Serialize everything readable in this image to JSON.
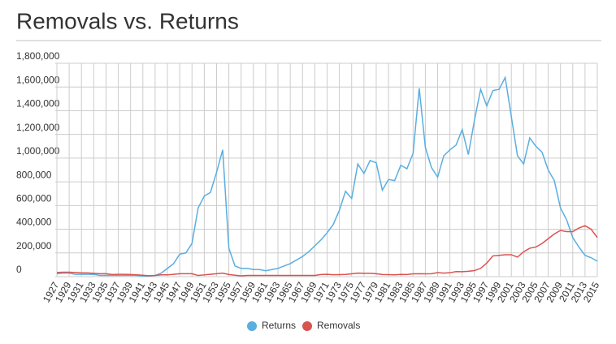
{
  "chart_data": {
    "type": "line",
    "title": "Removals vs. Returns",
    "x": [
      1927,
      1928,
      1929,
      1930,
      1931,
      1932,
      1933,
      1934,
      1935,
      1936,
      1937,
      1938,
      1939,
      1940,
      1941,
      1942,
      1943,
      1944,
      1945,
      1946,
      1947,
      1948,
      1949,
      1950,
      1951,
      1952,
      1953,
      1954,
      1955,
      1956,
      1957,
      1958,
      1959,
      1960,
      1961,
      1962,
      1963,
      1964,
      1965,
      1966,
      1967,
      1968,
      1969,
      1970,
      1971,
      1972,
      1973,
      1974,
      1975,
      1976,
      1977,
      1978,
      1979,
      1980,
      1981,
      1982,
      1983,
      1984,
      1985,
      1986,
      1987,
      1988,
      1989,
      1990,
      1991,
      1992,
      1993,
      1994,
      1995,
      1996,
      1997,
      1998,
      1999,
      2000,
      2001,
      2002,
      2003,
      2004,
      2005,
      2006,
      2007,
      2008,
      2009,
      2010,
      2011,
      2012,
      2013,
      2014,
      2015
    ],
    "series": [
      {
        "name": "Returns",
        "color": "#5aaee0",
        "values": [
          25000,
          30000,
          30000,
          20000,
          20000,
          20000,
          20000,
          10000,
          10000,
          10000,
          10000,
          10000,
          10000,
          10000,
          5000,
          5000,
          10000,
          30000,
          70000,
          110000,
          190000,
          200000,
          280000,
          580000,
          680000,
          710000,
          880000,
          1070000,
          240000,
          90000,
          70000,
          70000,
          60000,
          60000,
          50000,
          60000,
          70000,
          90000,
          110000,
          140000,
          170000,
          210000,
          260000,
          310000,
          370000,
          440000,
          560000,
          720000,
          660000,
          950000,
          870000,
          980000,
          960000,
          730000,
          820000,
          810000,
          940000,
          910000,
          1040000,
          1590000,
          1090000,
          920000,
          840000,
          1020000,
          1070000,
          1110000,
          1240000,
          1030000,
          1320000,
          1580000,
          1440000,
          1570000,
          1580000,
          1680000,
          1350000,
          1020000,
          950000,
          1170000,
          1100000,
          1050000,
          900000,
          810000,
          580000,
          480000,
          330000,
          250000,
          180000,
          160000,
          130000
        ]
      },
      {
        "name": "Removals",
        "color": "#d9534f",
        "values": [
          35000,
          38000,
          38000,
          35000,
          32000,
          32000,
          28000,
          25000,
          25000,
          18000,
          20000,
          20000,
          18000,
          15000,
          12000,
          8000,
          10000,
          15000,
          15000,
          20000,
          25000,
          25000,
          25000,
          10000,
          15000,
          20000,
          25000,
          30000,
          18000,
          12000,
          7000,
          10000,
          10000,
          10000,
          10000,
          10000,
          10000,
          10000,
          10000,
          10000,
          10000,
          10000,
          10000,
          18000,
          20000,
          16000,
          17000,
          19000,
          24000,
          30000,
          28000,
          28000,
          25000,
          18000,
          17000,
          15000,
          19000,
          18000,
          24000,
          25000,
          24000,
          25000,
          34000,
          30000,
          33000,
          43000,
          42000,
          45000,
          51000,
          70000,
          115000,
          175000,
          180000,
          185000,
          185000,
          165000,
          210000,
          240000,
          250000,
          280000,
          320000,
          360000,
          390000,
          380000,
          380000,
          410000,
          430000,
          400000,
          330000
        ]
      }
    ],
    "xlim": [
      1927,
      2015
    ],
    "xticks": [
      1927,
      1929,
      1931,
      1933,
      1935,
      1937,
      1939,
      1941,
      1943,
      1945,
      1947,
      1949,
      1951,
      1953,
      1955,
      1957,
      1959,
      1961,
      1963,
      1965,
      1967,
      1969,
      1971,
      1973,
      1975,
      1977,
      1979,
      1981,
      1983,
      1985,
      1987,
      1989,
      1991,
      1993,
      1995,
      1997,
      1999,
      2001,
      2003,
      2005,
      2007,
      2009,
      2011,
      2013,
      2015
    ],
    "ylim": [
      0,
      1800000
    ],
    "yticks": [
      0,
      {
        "value": 200000,
        "label": "200,000"
      },
      {
        "value": 400000,
        "label": "400,000"
      },
      {
        "value": 600000,
        "label": "600,000"
      },
      {
        "value": 800000,
        "label": "800,000"
      },
      {
        "value": 1000000,
        "label": "1,000,000"
      },
      {
        "value": 1200000,
        "label": "1,200,000"
      },
      {
        "value": 1400000,
        "label": "1,400,000"
      },
      {
        "value": 1600000,
        "label": "1,600,000"
      },
      {
        "value": 1800000,
        "label": "1,800,000"
      }
    ],
    "grid": true,
    "legend": "bottom"
  }
}
